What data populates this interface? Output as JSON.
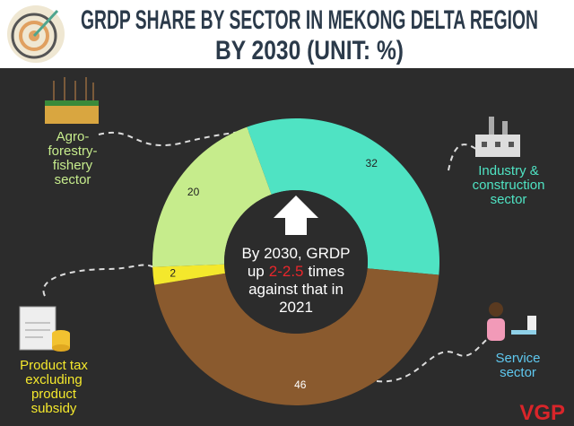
{
  "chart_data": {
    "type": "donut",
    "title_lines": [
      "GRDP SHARE BY SECTOR IN MEKONG DELTA REGION",
      "BY 2030 (UNIT: %)"
    ],
    "categories": [
      "Industry & construction sector",
      "Service sector",
      "Product tax excluding product subsidy",
      "Agro-forestry-fishery sector"
    ],
    "values": [
      32,
      46,
      2,
      20
    ],
    "colors": [
      "#4fe3c3",
      "#8a5a2e",
      "#f4e82c",
      "#c6ec8c"
    ],
    "annotation": [
      [
        "By 2030, GRDP"
      ],
      [
        "up",
        "2-2.5",
        "times"
      ],
      [
        "against that in"
      ],
      [
        "2021"
      ]
    ],
    "brand": "VGP"
  }
}
